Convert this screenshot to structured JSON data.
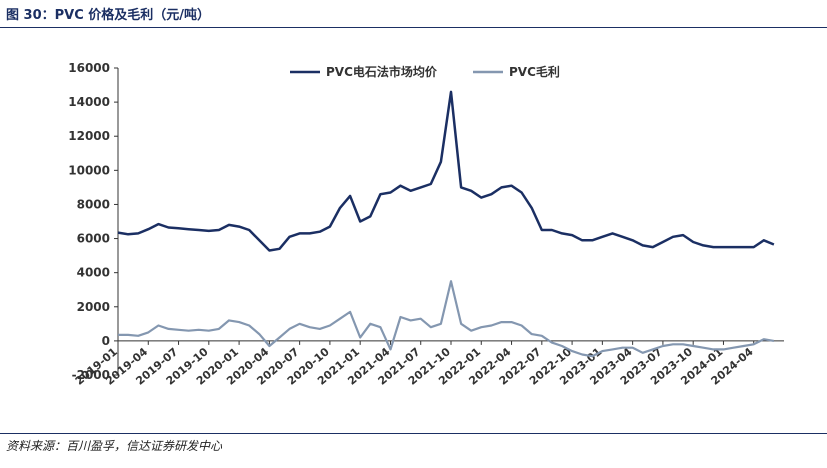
{
  "figure": {
    "title": "图 30：PVC 价格及毛利（元/吨）",
    "source": "资料来源：百川盈孚，信达证券研发中心"
  },
  "chart_data": {
    "type": "line",
    "title": "",
    "xlabel": "",
    "ylabel": "",
    "ylim": [
      -2000,
      16000
    ],
    "yticks": [
      -2000,
      0,
      2000,
      4000,
      6000,
      8000,
      10000,
      12000,
      14000,
      16000
    ],
    "x_range": [
      "2019-01",
      "2024-06"
    ],
    "xticks": [
      "2019-01",
      "2019-04",
      "2019-07",
      "2019-10",
      "2020-01",
      "2020-04",
      "2020-07",
      "2020-10",
      "2021-01",
      "2021-04",
      "2021-07",
      "2021-10",
      "2022-01",
      "2022-04",
      "2022-07",
      "2022-10",
      "2023-01",
      "2023-04",
      "2023-07",
      "2023-10",
      "2024-01",
      "2024-04"
    ],
    "legend": {
      "position": "top-center"
    },
    "grid": false,
    "series": [
      {
        "name": "PVC电石法市场均价",
        "color": "#1b2f63",
        "points": [
          [
            "2019-01",
            6350
          ],
          [
            "2019-02",
            6250
          ],
          [
            "2019-03",
            6300
          ],
          [
            "2019-04",
            6550
          ],
          [
            "2019-05",
            6850
          ],
          [
            "2019-06",
            6650
          ],
          [
            "2019-07",
            6600
          ],
          [
            "2019-08",
            6550
          ],
          [
            "2019-09",
            6500
          ],
          [
            "2019-10",
            6450
          ],
          [
            "2019-11",
            6500
          ],
          [
            "2019-12",
            6800
          ],
          [
            "2020-01",
            6700
          ],
          [
            "2020-02",
            6500
          ],
          [
            "2020-03",
            5900
          ],
          [
            "2020-04",
            5300
          ],
          [
            "2020-05",
            5400
          ],
          [
            "2020-06",
            6100
          ],
          [
            "2020-07",
            6300
          ],
          [
            "2020-08",
            6300
          ],
          [
            "2020-09",
            6400
          ],
          [
            "2020-10",
            6700
          ],
          [
            "2020-11",
            7800
          ],
          [
            "2020-12",
            8500
          ],
          [
            "2021-01",
            7000
          ],
          [
            "2021-02",
            7300
          ],
          [
            "2021-03",
            8600
          ],
          [
            "2021-04",
            8700
          ],
          [
            "2021-05",
            9100
          ],
          [
            "2021-06",
            8800
          ],
          [
            "2021-07",
            9000
          ],
          [
            "2021-08",
            9200
          ],
          [
            "2021-09",
            10500
          ],
          [
            "2021-10",
            14600
          ],
          [
            "2021-11",
            9000
          ],
          [
            "2021-12",
            8800
          ],
          [
            "2022-01",
            8400
          ],
          [
            "2022-02",
            8600
          ],
          [
            "2022-03",
            9000
          ],
          [
            "2022-04",
            9100
          ],
          [
            "2022-05",
            8700
          ],
          [
            "2022-06",
            7800
          ],
          [
            "2022-07",
            6500
          ],
          [
            "2022-08",
            6500
          ],
          [
            "2022-09",
            6300
          ],
          [
            "2022-10",
            6200
          ],
          [
            "2022-11",
            5900
          ],
          [
            "2022-12",
            5900
          ],
          [
            "2023-01",
            6100
          ],
          [
            "2023-02",
            6300
          ],
          [
            "2023-03",
            6100
          ],
          [
            "2023-04",
            5900
          ],
          [
            "2023-05",
            5600
          ],
          [
            "2023-06",
            5500
          ],
          [
            "2023-07",
            5800
          ],
          [
            "2023-08",
            6100
          ],
          [
            "2023-09",
            6200
          ],
          [
            "2023-10",
            5800
          ],
          [
            "2023-11",
            5600
          ],
          [
            "2023-12",
            5500
          ],
          [
            "2024-01",
            5500
          ],
          [
            "2024-02",
            5500
          ],
          [
            "2024-03",
            5500
          ],
          [
            "2024-04",
            5500
          ],
          [
            "2024-05",
            5900
          ],
          [
            "2024-06",
            5650
          ]
        ]
      },
      {
        "name": "PVC毛利",
        "color": "#8497b0",
        "points": [
          [
            "2019-01",
            350
          ],
          [
            "2019-02",
            350
          ],
          [
            "2019-03",
            300
          ],
          [
            "2019-04",
            500
          ],
          [
            "2019-05",
            900
          ],
          [
            "2019-06",
            700
          ],
          [
            "2019-07",
            650
          ],
          [
            "2019-08",
            600
          ],
          [
            "2019-09",
            650
          ],
          [
            "2019-10",
            600
          ],
          [
            "2019-11",
            700
          ],
          [
            "2019-12",
            1200
          ],
          [
            "2020-01",
            1100
          ],
          [
            "2020-02",
            900
          ],
          [
            "2020-03",
            400
          ],
          [
            "2020-04",
            -300
          ],
          [
            "2020-05",
            200
          ],
          [
            "2020-06",
            700
          ],
          [
            "2020-07",
            1000
          ],
          [
            "2020-08",
            800
          ],
          [
            "2020-09",
            700
          ],
          [
            "2020-10",
            900
          ],
          [
            "2020-11",
            1300
          ],
          [
            "2020-12",
            1700
          ],
          [
            "2021-01",
            200
          ],
          [
            "2021-02",
            1000
          ],
          [
            "2021-03",
            800
          ],
          [
            "2021-04",
            -500
          ],
          [
            "2021-05",
            1400
          ],
          [
            "2021-06",
            1200
          ],
          [
            "2021-07",
            1300
          ],
          [
            "2021-08",
            800
          ],
          [
            "2021-09",
            1000
          ],
          [
            "2021-10",
            3500
          ],
          [
            "2021-11",
            1000
          ],
          [
            "2021-12",
            600
          ],
          [
            "2022-01",
            800
          ],
          [
            "2022-02",
            900
          ],
          [
            "2022-03",
            1100
          ],
          [
            "2022-04",
            1100
          ],
          [
            "2022-05",
            900
          ],
          [
            "2022-06",
            400
          ],
          [
            "2022-07",
            300
          ],
          [
            "2022-08",
            -100
          ],
          [
            "2022-09",
            -300
          ],
          [
            "2022-10",
            -600
          ],
          [
            "2022-11",
            -800
          ],
          [
            "2022-12",
            -900
          ],
          [
            "2023-01",
            -600
          ],
          [
            "2023-02",
            -500
          ],
          [
            "2023-03",
            -400
          ],
          [
            "2023-04",
            -400
          ],
          [
            "2023-05",
            -700
          ],
          [
            "2023-06",
            -500
          ],
          [
            "2023-07",
            -300
          ],
          [
            "2023-08",
            -200
          ],
          [
            "2023-09",
            -200
          ],
          [
            "2023-10",
            -300
          ],
          [
            "2023-11",
            -400
          ],
          [
            "2023-12",
            -500
          ],
          [
            "2024-01",
            -500
          ],
          [
            "2024-02",
            -400
          ],
          [
            "2024-03",
            -300
          ],
          [
            "2024-04",
            -200
          ],
          [
            "2024-05",
            100
          ],
          [
            "2024-06",
            0
          ]
        ]
      }
    ]
  }
}
